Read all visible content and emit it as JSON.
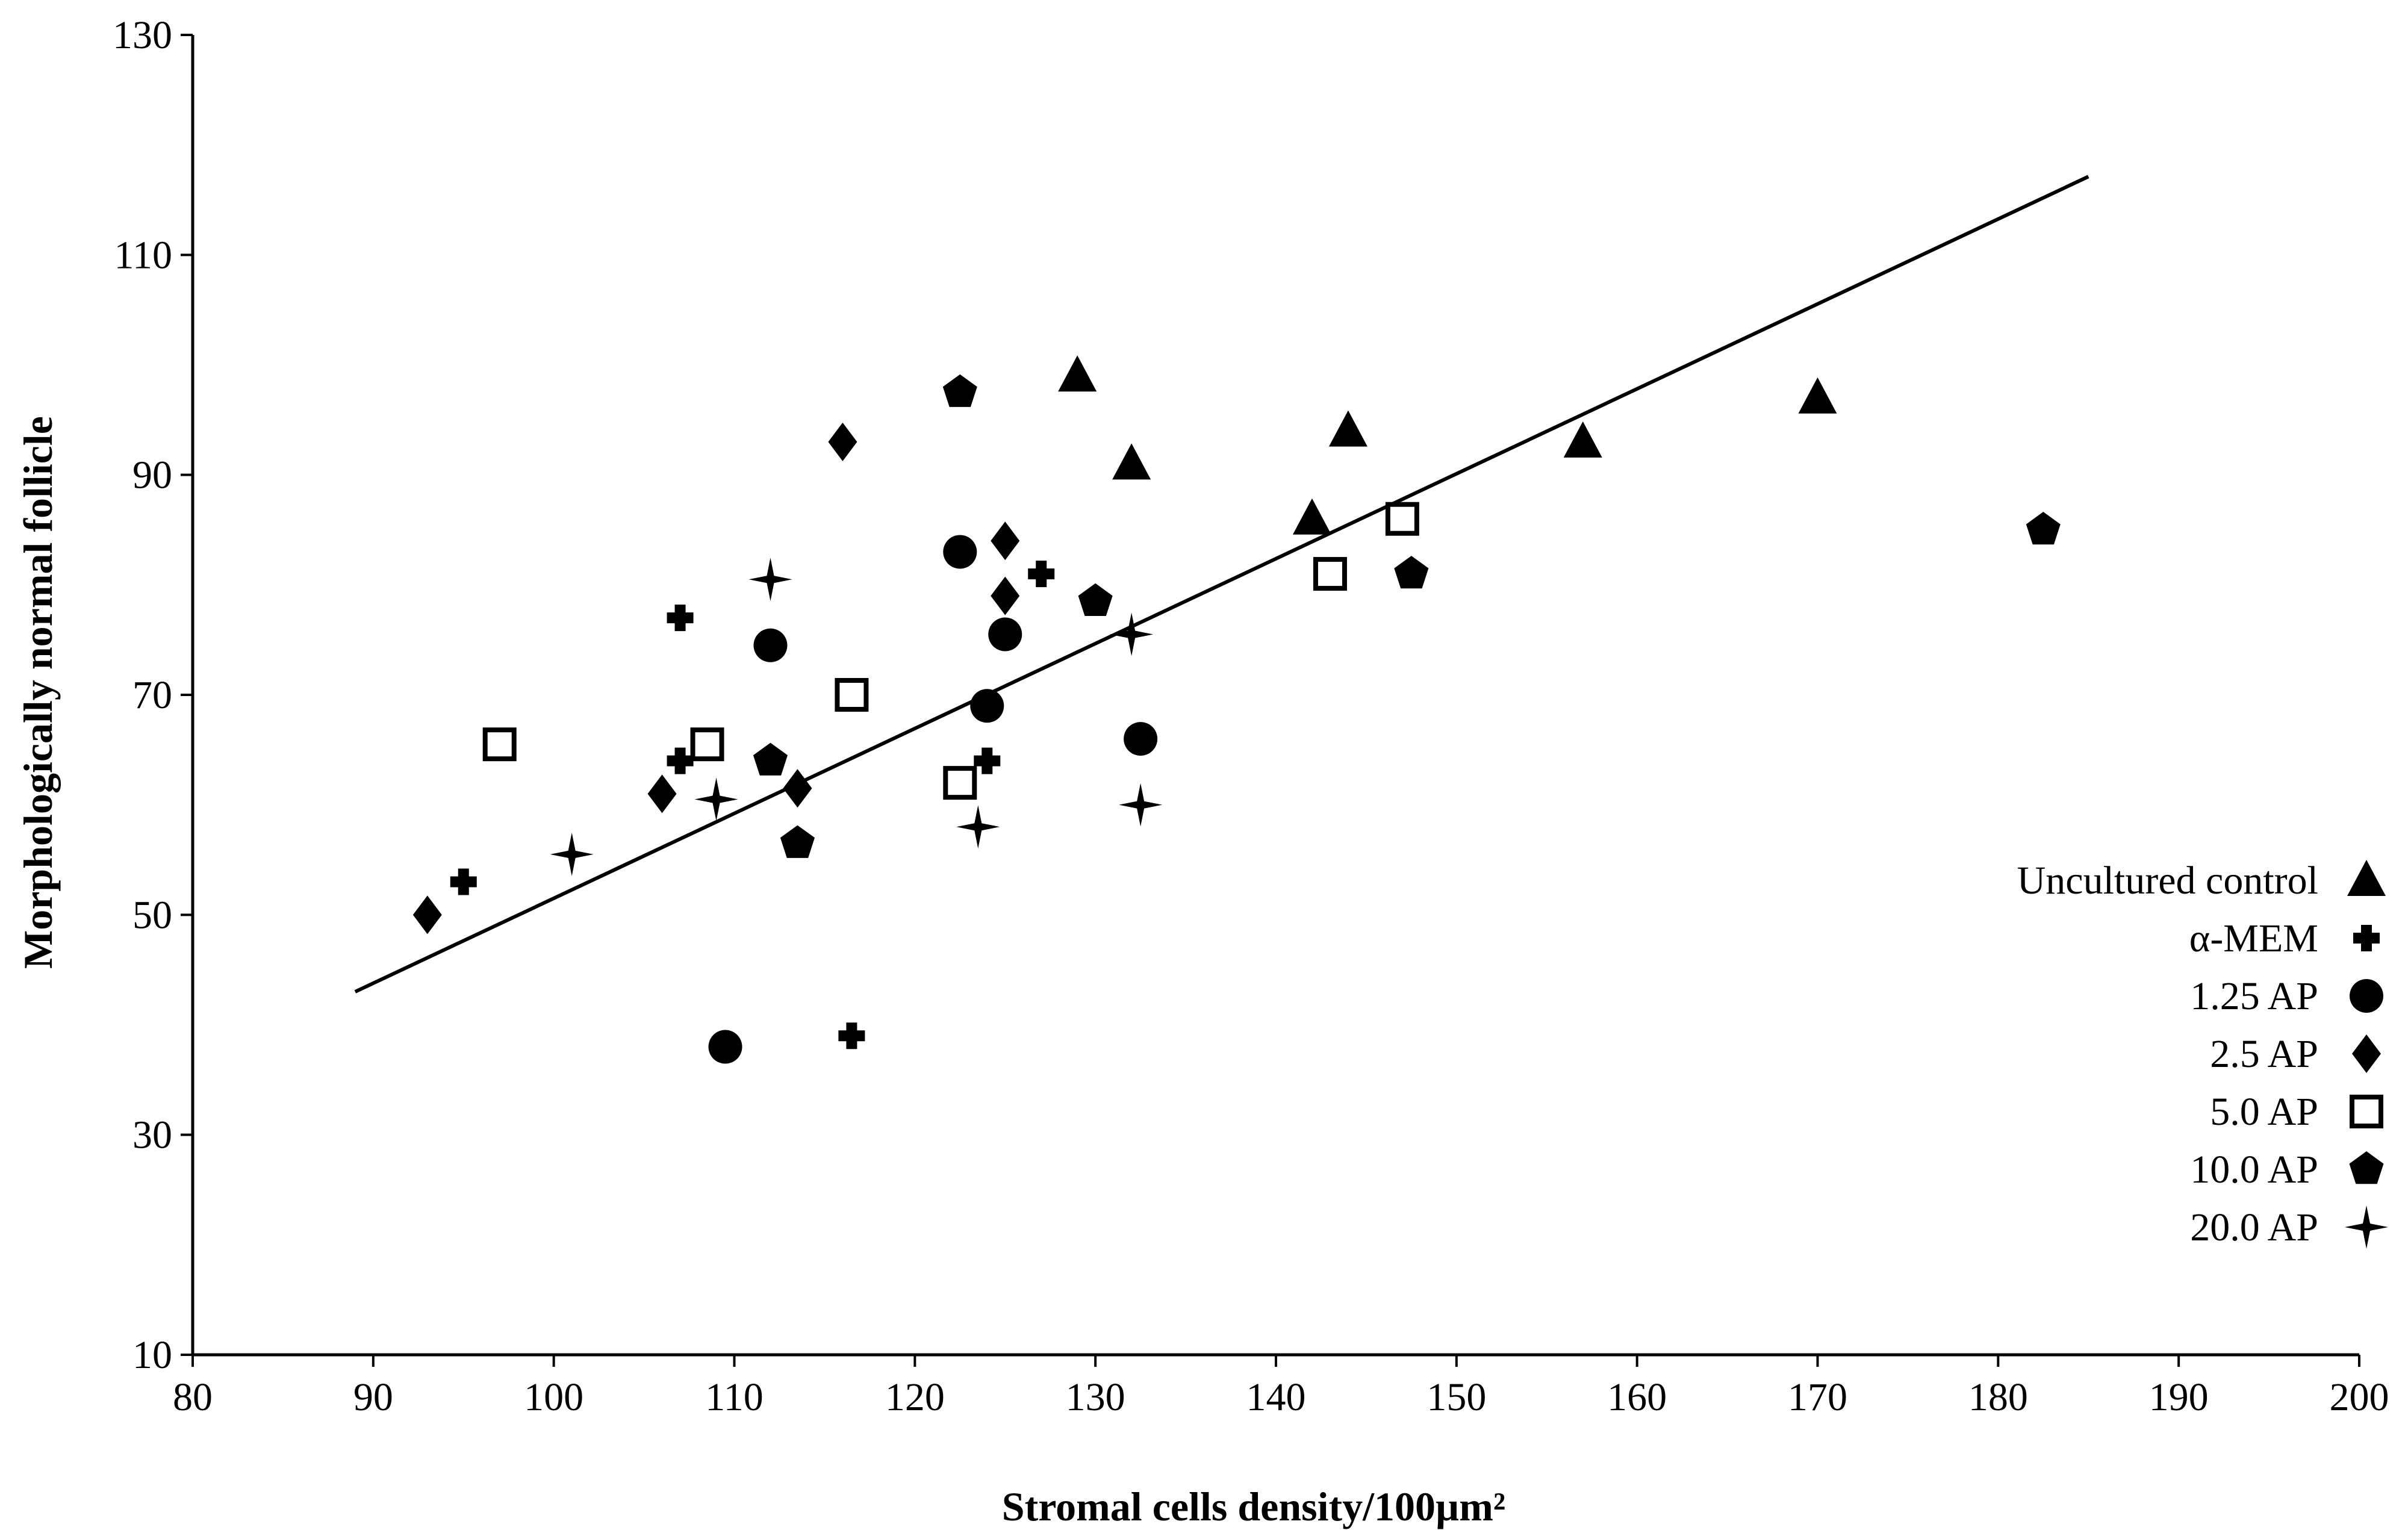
{
  "chart_data": {
    "type": "scatter",
    "title": "",
    "xlabel": "Stromal cells density/100µm²",
    "ylabel": "Morphologically normal follicle",
    "xlim": [
      80,
      200
    ],
    "ylim": [
      10,
      130
    ],
    "xticks": [
      80,
      90,
      100,
      110,
      120,
      130,
      140,
      150,
      160,
      170,
      180,
      190,
      200
    ],
    "yticks": [
      10,
      30,
      50,
      70,
      90,
      110,
      130
    ],
    "grid": false,
    "legend_position": "right",
    "trendline": {
      "x_start": 89,
      "x_end": 185,
      "slope": 0.772,
      "intercept": -25.7
    },
    "series": [
      {
        "name": "Uncultured control",
        "marker": "triangle",
        "points": [
          [
            129,
            99
          ],
          [
            132,
            91
          ],
          [
            142,
            86
          ],
          [
            144,
            94
          ],
          [
            157,
            93
          ],
          [
            170,
            97
          ]
        ]
      },
      {
        "name": "α-MEM",
        "marker": "cross",
        "points": [
          [
            95,
            53
          ],
          [
            107,
            77
          ],
          [
            107,
            64
          ],
          [
            116.5,
            39
          ],
          [
            124,
            64
          ],
          [
            127,
            81
          ]
        ]
      },
      {
        "name": "1.25 AP",
        "marker": "circle",
        "points": [
          [
            109.5,
            38
          ],
          [
            112,
            74.5
          ],
          [
            122.5,
            83
          ],
          [
            124,
            69
          ],
          [
            125,
            75.5
          ],
          [
            132.5,
            66
          ]
        ]
      },
      {
        "name": "2.5 AP",
        "marker": "diamond",
        "points": [
          [
            93,
            50
          ],
          [
            106,
            61
          ],
          [
            113.5,
            61.5
          ],
          [
            116,
            93
          ],
          [
            125,
            84
          ],
          [
            125,
            79
          ]
        ]
      },
      {
        "name": "5.0 AP",
        "marker": "square-open",
        "points": [
          [
            97,
            65.5
          ],
          [
            108.5,
            65.5
          ],
          [
            116.5,
            70
          ],
          [
            122.5,
            62
          ],
          [
            143,
            81
          ],
          [
            147,
            86
          ]
        ]
      },
      {
        "name": "10.0 AP",
        "marker": "pentagon",
        "points": [
          [
            112,
            64
          ],
          [
            113.5,
            56.5
          ],
          [
            122.5,
            97.5
          ],
          [
            130,
            78.5
          ],
          [
            147.5,
            81
          ],
          [
            182.5,
            85
          ]
        ]
      },
      {
        "name": "20.0 AP",
        "marker": "star4",
        "points": [
          [
            101,
            55.5
          ],
          [
            109,
            60.5
          ],
          [
            112,
            80.5
          ],
          [
            123.5,
            58
          ],
          [
            132,
            75.5
          ],
          [
            132.5,
            60
          ]
        ]
      }
    ]
  }
}
